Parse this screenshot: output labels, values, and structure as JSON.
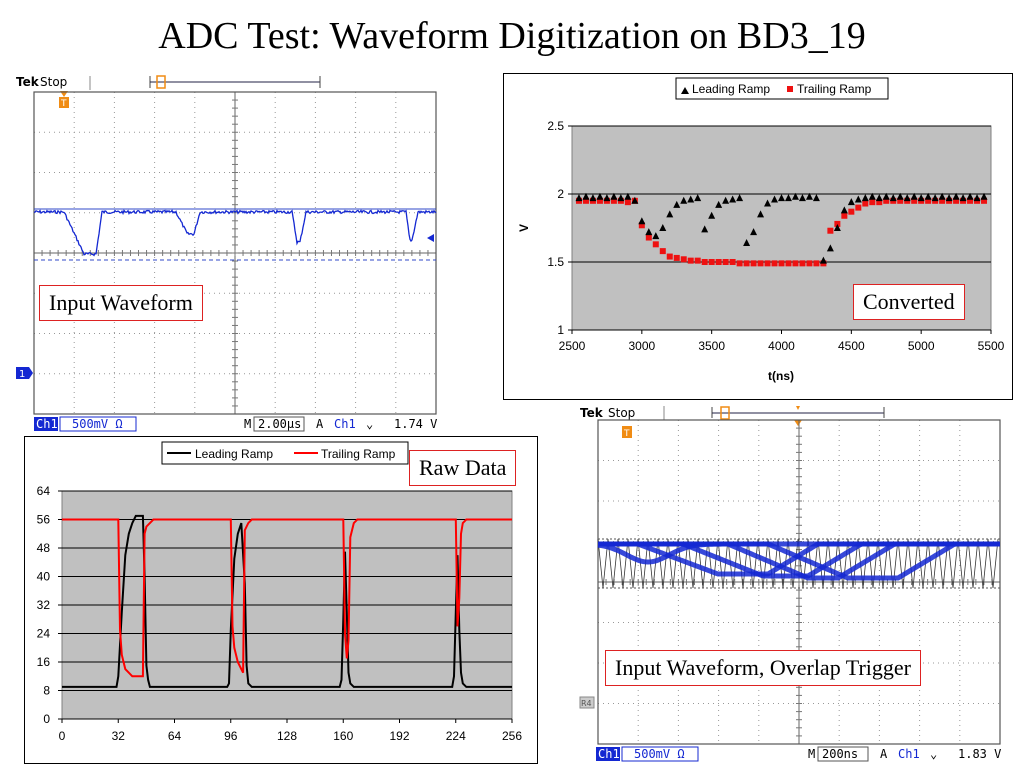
{
  "title": "ADC Test: Waveform Digitization on BD3_19",
  "labels": {
    "input_waveform": "Input Waveform",
    "converted": "Converted",
    "raw_data": "Raw Data",
    "overlap": "Input Waveform, Overlap Trigger"
  },
  "scope1": {
    "brand": "Tek",
    "status": "Stop",
    "trigger_marker": "T",
    "channel_marker": "1",
    "channel": "Ch1",
    "scale": "500mV Ω",
    "timebase_prefix": "M",
    "timebase": "2.00µs",
    "trigger_source_prefix": "A",
    "trigger_channel": "Ch1",
    "trigger_slope": "⌄",
    "trigger_level": "1.74 V"
  },
  "scope2": {
    "brand": "Tek",
    "status": "Stop",
    "trigger_marker": "T",
    "ref_marker": "R4",
    "channel": "Ch1",
    "scale": "500mV Ω",
    "timebase_prefix": "M",
    "timebase": "200ns",
    "trigger_source_prefix": "A",
    "trigger_channel": "Ch1",
    "trigger_slope": "⌄",
    "trigger_level": "1.83 V"
  },
  "colors": {
    "scope_bg": "#ffffff",
    "scope_trace": "#1428d2",
    "scope_trigger": "#f08c14",
    "plot_area": "#c0c0c0",
    "leading_raw": "#000000",
    "trailing_raw": "#ff0000",
    "leading_conv": "#000000",
    "trailing_conv": "#ee1111"
  },
  "chart_data": [
    {
      "type": "scatter",
      "xlabel": "t(ns)",
      "ylabel": "V",
      "xlim": [
        2500,
        5500
      ],
      "ylim": [
        1,
        2.5
      ],
      "xticks": [
        "2500",
        "3000",
        "3500",
        "4000",
        "4500",
        "5000",
        "5500"
      ],
      "yticks": [
        "1",
        "1.5",
        "2",
        "2.5"
      ],
      "grid": "horizontal",
      "legend": "top",
      "series": [
        {
          "name": "Leading Ramp",
          "marker": "triangle",
          "x": [
            2550,
            2600,
            2650,
            2700,
            2750,
            2800,
            2850,
            2900,
            2950,
            3000,
            3050,
            3100,
            3150,
            3200,
            3250,
            3300,
            3350,
            3400,
            3450,
            3500,
            3550,
            3600,
            3650,
            3700,
            3750,
            3800,
            3850,
            3900,
            3950,
            4000,
            4050,
            4100,
            4150,
            4200,
            4250,
            4300,
            4350,
            4400,
            4450,
            4500,
            4550,
            4600,
            4650,
            4700,
            4750,
            4800,
            4850,
            4900,
            4950,
            5000,
            5050,
            5100,
            5150,
            5200,
            5250,
            5300,
            5350,
            5400,
            5450
          ],
          "y": [
            1.97,
            1.98,
            1.97,
            1.98,
            1.97,
            1.98,
            1.97,
            1.98,
            1.95,
            1.8,
            1.72,
            1.69,
            1.75,
            1.85,
            1.92,
            1.95,
            1.96,
            1.97,
            1.74,
            1.84,
            1.92,
            1.95,
            1.96,
            1.97,
            1.64,
            1.72,
            1.85,
            1.93,
            1.96,
            1.97,
            1.97,
            1.98,
            1.97,
            1.98,
            1.97,
            1.51,
            1.6,
            1.75,
            1.88,
            1.94,
            1.96,
            1.97,
            1.98,
            1.97,
            1.98,
            1.97,
            1.98,
            1.97,
            1.98,
            1.97,
            1.98,
            1.97,
            1.98,
            1.97,
            1.98,
            1.97,
            1.98,
            1.97,
            1.98
          ]
        },
        {
          "name": "Trailing Ramp",
          "marker": "square",
          "x": [
            2550,
            2600,
            2650,
            2700,
            2750,
            2800,
            2850,
            2900,
            2950,
            3000,
            3050,
            3100,
            3150,
            3200,
            3250,
            3300,
            3350,
            3400,
            3450,
            3500,
            3550,
            3600,
            3650,
            3700,
            3750,
            3800,
            3850,
            3900,
            3950,
            4000,
            4050,
            4100,
            4150,
            4200,
            4250,
            4300,
            4350,
            4400,
            4450,
            4500,
            4550,
            4600,
            4650,
            4700,
            4750,
            4800,
            4850,
            4900,
            4950,
            5000,
            5050,
            5100,
            5150,
            5200,
            5250,
            5300,
            5350,
            5400,
            5450
          ],
          "y": [
            1.95,
            1.95,
            1.95,
            1.95,
            1.95,
            1.95,
            1.95,
            1.94,
            1.95,
            1.77,
            1.68,
            1.63,
            1.58,
            1.54,
            1.53,
            1.52,
            1.51,
            1.51,
            1.5,
            1.5,
            1.5,
            1.5,
            1.5,
            1.49,
            1.49,
            1.49,
            1.49,
            1.49,
            1.49,
            1.49,
            1.49,
            1.49,
            1.49,
            1.49,
            1.49,
            1.49,
            1.73,
            1.78,
            1.84,
            1.87,
            1.9,
            1.93,
            1.94,
            1.94,
            1.95,
            1.95,
            1.95,
            1.95,
            1.95,
            1.95,
            1.95,
            1.95,
            1.95,
            1.95,
            1.95,
            1.95,
            1.95,
            1.95,
            1.95
          ]
        }
      ]
    },
    {
      "type": "line",
      "xlim": [
        0,
        256
      ],
      "ylim": [
        0,
        64
      ],
      "xticks": [
        "0",
        "32",
        "64",
        "96",
        "128",
        "160",
        "192",
        "224",
        "256"
      ],
      "yticks": [
        "0",
        "8",
        "16",
        "24",
        "32",
        "40",
        "48",
        "56",
        "64"
      ],
      "grid": "horizontal",
      "legend": "top",
      "series": [
        {
          "name": "Leading Ramp",
          "x": [
            0,
            31,
            32,
            34,
            36,
            38,
            40,
            42,
            44,
            46,
            47,
            48,
            49,
            50,
            52,
            94,
            95,
            96,
            98,
            100,
            102,
            104,
            105,
            106,
            108,
            158,
            159,
            160,
            161,
            162,
            163,
            164,
            166,
            222,
            223,
            224,
            225,
            226,
            227,
            228,
            230,
            256
          ],
          "y": [
            9,
            9,
            12,
            30,
            46,
            52,
            55,
            57,
            57,
            57,
            40,
            15,
            11,
            9,
            9,
            9,
            10,
            25,
            45,
            52,
            55,
            38,
            15,
            10,
            9,
            9,
            11,
            28,
            47,
            30,
            13,
            10,
            9,
            9,
            12,
            30,
            46,
            25,
            13,
            10,
            9,
            9
          ]
        },
        {
          "name": "Trailing Ramp",
          "x": [
            0,
            32,
            33,
            34,
            36,
            38,
            40,
            42,
            44,
            46,
            47,
            48,
            50,
            52,
            56,
            96,
            97,
            98,
            100,
            102,
            103,
            104,
            106,
            108,
            112,
            160,
            161,
            162,
            163,
            164,
            166,
            168,
            172,
            224,
            225,
            226,
            227,
            228,
            230,
            232,
            236,
            256
          ],
          "y": [
            56,
            56,
            25,
            18,
            14,
            13,
            12,
            12,
            12,
            12,
            52,
            54,
            55,
            56,
            56,
            56,
            26,
            20,
            16,
            14,
            13,
            53,
            55,
            56,
            56,
            56,
            24,
            17,
            22,
            51,
            55,
            56,
            56,
            56,
            26,
            34,
            52,
            55,
            56,
            56,
            56,
            56
          ]
        }
      ]
    }
  ]
}
